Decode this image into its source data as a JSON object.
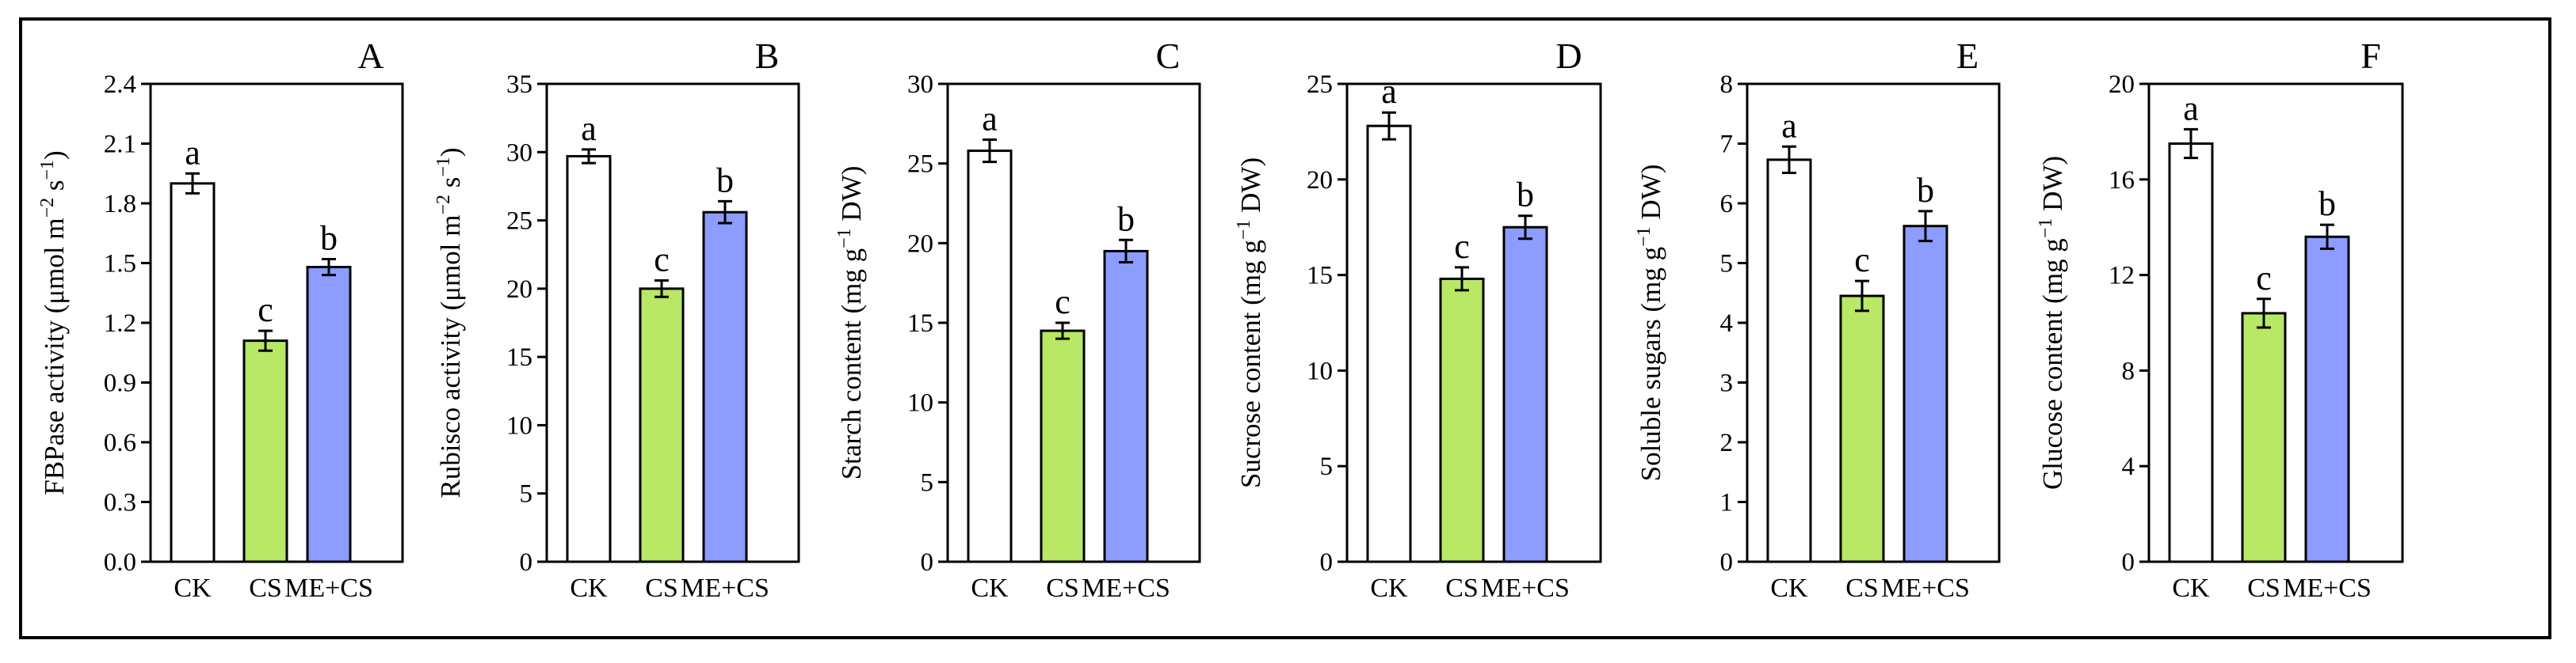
{
  "chart_data": [
    {
      "type": "bar",
      "panel": "A",
      "categories": [
        "CK",
        "CS",
        "ME+CS"
      ],
      "values": [
        1.9,
        1.11,
        1.48
      ],
      "errors": [
        0.05,
        0.05,
        0.04
      ],
      "letters": [
        "a",
        "c",
        "b"
      ],
      "ylabel": "FBPase activity (μmol m−2 s−1)",
      "ylabel_parts": [
        [
          "FBPase activity (μmol m",
          false
        ],
        [
          "−2",
          true
        ],
        [
          " s",
          false
        ],
        [
          "−1",
          true
        ],
        [
          ")",
          false
        ]
      ],
      "ylim": [
        0,
        2.4
      ],
      "yticks": [
        "0.0",
        "0.3",
        "0.6",
        "0.9",
        "1.2",
        "1.5",
        "1.8",
        "2.1",
        "2.4"
      ],
      "title": ""
    },
    {
      "type": "bar",
      "panel": "B",
      "categories": [
        "CK",
        "CS",
        "ME+CS"
      ],
      "values": [
        29.7,
        20.0,
        25.6
      ],
      "errors": [
        0.5,
        0.6,
        0.8
      ],
      "letters": [
        "a",
        "c",
        "b"
      ],
      "ylabel": "Rubisco activity (μmol m−2 s−1)",
      "ylabel_parts": [
        [
          "Rubisco activity (μmol m",
          false
        ],
        [
          "−2",
          true
        ],
        [
          " s",
          false
        ],
        [
          "−1",
          true
        ],
        [
          ")",
          false
        ]
      ],
      "ylim": [
        0,
        35
      ],
      "yticks": [
        "0",
        "5",
        "10",
        "15",
        "20",
        "25",
        "30",
        "35"
      ],
      "title": ""
    },
    {
      "type": "bar",
      "panel": "C",
      "categories": [
        "CK",
        "CS",
        "ME+CS"
      ],
      "values": [
        25.8,
        14.5,
        19.5
      ],
      "errors": [
        0.7,
        0.5,
        0.7
      ],
      "letters": [
        "a",
        "c",
        "b"
      ],
      "ylabel": "Starch content (mg g−1 DW)",
      "ylabel_parts": [
        [
          "Starch content (mg g",
          false
        ],
        [
          "−1",
          true
        ],
        [
          " DW)",
          false
        ]
      ],
      "ylim": [
        0,
        30
      ],
      "yticks": [
        "0",
        "5",
        "10",
        "15",
        "20",
        "25",
        "30"
      ],
      "title": ""
    },
    {
      "type": "bar",
      "panel": "D",
      "categories": [
        "CK",
        "CS",
        "ME+CS"
      ],
      "values": [
        22.8,
        14.8,
        17.5
      ],
      "errors": [
        0.7,
        0.6,
        0.6
      ],
      "letters": [
        "a",
        "c",
        "b"
      ],
      "ylabel": "Sucrose content (mg g−1 DW)",
      "ylabel_parts": [
        [
          "Sucrose content (mg g",
          false
        ],
        [
          "−1",
          true
        ],
        [
          " DW)",
          false
        ]
      ],
      "ylim": [
        0,
        25
      ],
      "yticks": [
        "0",
        "5",
        "10",
        "15",
        "20",
        "25"
      ],
      "title": ""
    },
    {
      "type": "bar",
      "panel": "E",
      "categories": [
        "CK",
        "CS",
        "ME+CS"
      ],
      "values": [
        6.73,
        4.45,
        5.62
      ],
      "errors": [
        0.22,
        0.25,
        0.25
      ],
      "letters": [
        "a",
        "c",
        "b"
      ],
      "ylabel": "Soluble sugars (mg g−1 DW)",
      "ylabel_parts": [
        [
          "Soluble sugars (mg g",
          false
        ],
        [
          "−1",
          true
        ],
        [
          " DW)",
          false
        ]
      ],
      "ylim": [
        0,
        8
      ],
      "yticks": [
        "0",
        "1",
        "2",
        "3",
        "4",
        "5",
        "6",
        "7",
        "8"
      ],
      "title": ""
    },
    {
      "type": "bar",
      "panel": "F",
      "categories": [
        "CK",
        "CS",
        "ME+CS"
      ],
      "values": [
        17.5,
        10.4,
        13.6
      ],
      "errors": [
        0.6,
        0.6,
        0.5
      ],
      "letters": [
        "a",
        "c",
        "b"
      ],
      "ylabel": "Glucose content (mg g−1 DW)",
      "ylabel_parts": [
        [
          "Glucose content (mg g",
          false
        ],
        [
          "−1",
          true
        ],
        [
          " DW)",
          false
        ]
      ],
      "ylim": [
        0,
        20
      ],
      "yticks": [
        "0",
        "4",
        "8",
        "12",
        "16",
        "20"
      ],
      "title": ""
    }
  ],
  "colors": {
    "CK": "#ffffff",
    "CS": "#b8e866",
    "ME+CS": "#8c9cff",
    "axis": "#000000"
  }
}
